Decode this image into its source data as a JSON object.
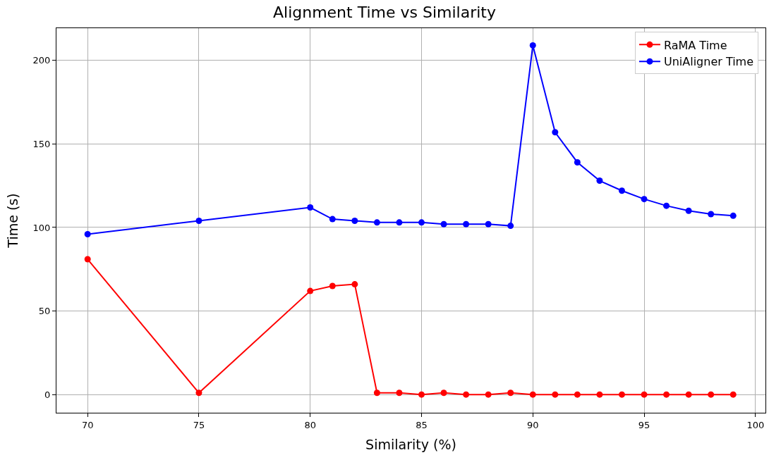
{
  "chart_data": {
    "type": "line",
    "title": "Alignment Time vs Similarity",
    "xlabel": "Similarity (%)",
    "ylabel": "Time (s)",
    "x": [
      70,
      75,
      80,
      81,
      82,
      83,
      84,
      85,
      86,
      87,
      88,
      89,
      90,
      91,
      92,
      93,
      94,
      95,
      96,
      97,
      98,
      99
    ],
    "series": [
      {
        "name": "RaMA Time",
        "color": "#ff0000",
        "values": [
          81,
          1,
          62,
          65,
          66,
          1,
          1,
          0,
          1,
          0,
          0,
          1,
          0,
          0,
          0,
          0,
          0,
          0,
          0,
          0,
          0,
          0
        ]
      },
      {
        "name": "UniAligner Time",
        "color": "#0000ff",
        "values": [
          96,
          104,
          112,
          105,
          104,
          103,
          103,
          103,
          102,
          102,
          102,
          101,
          209,
          157,
          139,
          128,
          122,
          117,
          113,
          110,
          108,
          107
        ]
      }
    ],
    "xlim": [
      68.6,
      100.45
    ],
    "xticks": [
      70,
      75,
      80,
      85,
      90,
      95,
      100
    ],
    "ylim": [
      -10.9,
      219.3
    ],
    "yticks": [
      0,
      50,
      100,
      150,
      200
    ],
    "grid": true,
    "legend": "top right",
    "marker": "circle",
    "line_style": "solid"
  }
}
